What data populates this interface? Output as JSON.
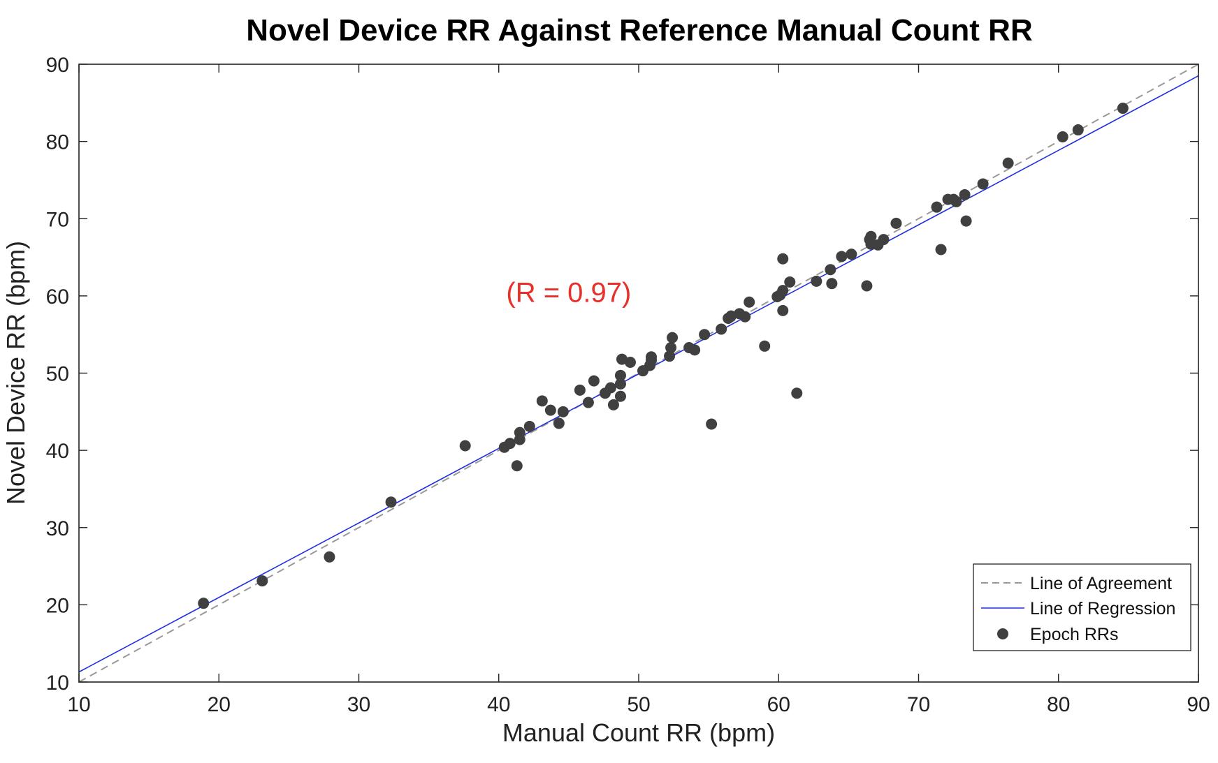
{
  "chart_data": {
    "type": "scatter",
    "title": "Novel Device RR Against Reference Manual Count RR",
    "xlabel": "Manual Count RR (bpm)",
    "ylabel": "Novel Device RR (bpm)",
    "xlim": [
      10,
      90
    ],
    "ylim": [
      10,
      90
    ],
    "xticks": [
      "10",
      "20",
      "30",
      "40",
      "50",
      "60",
      "70",
      "80",
      "90"
    ],
    "yticks": [
      "10",
      "20",
      "30",
      "40",
      "50",
      "60",
      "70",
      "80",
      "90"
    ],
    "grid": false,
    "legend_position": "bottom-right",
    "annotation": {
      "text": "(R = 0.97)",
      "color": "#e8302a",
      "x": 45,
      "y": 60.5
    },
    "series": [
      {
        "name": "Line of Agreement",
        "kind": "line",
        "style": "dashed",
        "color": "#999999",
        "x": [
          10,
          90
        ],
        "y": [
          10,
          90
        ]
      },
      {
        "name": "Line of Regression",
        "kind": "line",
        "style": "solid",
        "color": "#2030e0",
        "x": [
          10,
          90
        ],
        "y": [
          11.3,
          88.5
        ]
      },
      {
        "name": "Epoch RRs",
        "kind": "scatter",
        "color": "#404040",
        "points": [
          [
            18.9,
            20.2
          ],
          [
            23.1,
            23.1
          ],
          [
            27.9,
            26.2
          ],
          [
            32.3,
            33.3
          ],
          [
            37.6,
            40.6
          ],
          [
            40.4,
            40.4
          ],
          [
            40.8,
            40.9
          ],
          [
            41.3,
            38.0
          ],
          [
            41.5,
            41.4
          ],
          [
            41.5,
            42.3
          ],
          [
            42.2,
            43.1
          ],
          [
            43.1,
            46.4
          ],
          [
            43.7,
            45.2
          ],
          [
            44.3,
            43.5
          ],
          [
            44.6,
            45.0
          ],
          [
            45.8,
            47.8
          ],
          [
            46.4,
            46.2
          ],
          [
            46.8,
            49.0
          ],
          [
            47.6,
            47.4
          ],
          [
            48.0,
            48.1
          ],
          [
            48.2,
            45.9
          ],
          [
            48.7,
            49.7
          ],
          [
            48.7,
            48.6
          ],
          [
            48.7,
            47.0
          ],
          [
            48.8,
            51.8
          ],
          [
            49.4,
            51.4
          ],
          [
            50.3,
            50.3
          ],
          [
            50.8,
            51.0
          ],
          [
            50.9,
            52.1
          ],
          [
            50.9,
            51.7
          ],
          [
            52.2,
            52.2
          ],
          [
            52.3,
            53.3
          ],
          [
            52.4,
            54.6
          ],
          [
            53.6,
            53.3
          ],
          [
            54.0,
            53.0
          ],
          [
            54.7,
            55.0
          ],
          [
            55.2,
            43.4
          ],
          [
            55.9,
            55.7
          ],
          [
            56.4,
            57.1
          ],
          [
            56.6,
            57.4
          ],
          [
            57.2,
            57.7
          ],
          [
            57.6,
            57.3
          ],
          [
            57.9,
            59.2
          ],
          [
            59.0,
            53.5
          ],
          [
            59.9,
            59.9
          ],
          [
            60.1,
            60.1
          ],
          [
            60.3,
            64.8
          ],
          [
            60.3,
            58.1
          ],
          [
            60.3,
            60.7
          ],
          [
            60.8,
            61.8
          ],
          [
            61.3,
            47.4
          ],
          [
            62.7,
            61.9
          ],
          [
            63.7,
            63.4
          ],
          [
            63.8,
            61.6
          ],
          [
            64.5,
            65.1
          ],
          [
            65.2,
            65.4
          ],
          [
            66.3,
            61.3
          ],
          [
            66.5,
            67.3
          ],
          [
            66.6,
            67.7
          ],
          [
            66.6,
            66.7
          ],
          [
            67.1,
            66.6
          ],
          [
            67.5,
            67.3
          ],
          [
            68.4,
            69.4
          ],
          [
            71.3,
            71.5
          ],
          [
            71.6,
            66.0
          ],
          [
            72.1,
            72.5
          ],
          [
            72.5,
            72.5
          ],
          [
            72.7,
            72.2
          ],
          [
            73.3,
            73.1
          ],
          [
            73.4,
            69.7
          ],
          [
            74.6,
            74.5
          ],
          [
            76.4,
            77.2
          ],
          [
            80.3,
            80.6
          ],
          [
            81.4,
            81.5
          ],
          [
            84.6,
            84.3
          ]
        ]
      }
    ]
  }
}
